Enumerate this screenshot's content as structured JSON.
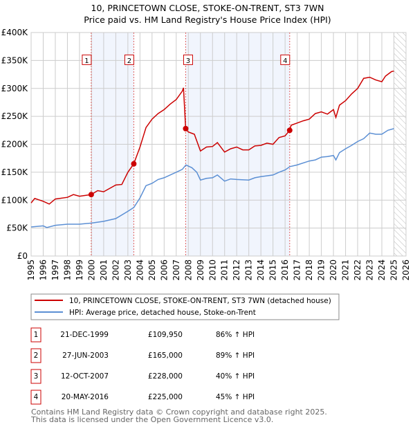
{
  "chart_data": {
    "type": "line",
    "title": "10, PRINCETOWN CLOSE, STOKE-ON-TRENT, ST3 7WN",
    "subtitle": "Price paid vs. HM Land Registry's House Price Index (HPI)",
    "xlim": [
      1995,
      2026
    ],
    "ylim": [
      0,
      400000
    ],
    "x_ticks": [
      "1995",
      "1996",
      "1997",
      "1998",
      "1999",
      "2000",
      "2001",
      "2002",
      "2003",
      "2004",
      "2005",
      "2006",
      "2007",
      "2008",
      "2009",
      "2010",
      "2011",
      "2012",
      "2013",
      "2014",
      "2015",
      "2016",
      "2017",
      "2018",
      "2019",
      "2020",
      "2021",
      "2022",
      "2023",
      "2024",
      "2025",
      "2026"
    ],
    "y_ticks": [
      {
        "v": 0,
        "label": "£0"
      },
      {
        "v": 50000,
        "label": "£50K"
      },
      {
        "v": 100000,
        "label": "£100K"
      },
      {
        "v": 150000,
        "label": "£150K"
      },
      {
        "v": 200000,
        "label": "£200K"
      },
      {
        "v": 250000,
        "label": "£250K"
      },
      {
        "v": 300000,
        "label": "£300K"
      },
      {
        "v": 350000,
        "label": "£350K"
      },
      {
        "v": 400000,
        "label": "£400K"
      }
    ],
    "grid": true,
    "shaded_periods": [
      [
        1999.97,
        2003.49
      ],
      [
        2007.78,
        2016.38
      ]
    ],
    "forecast_hatch_from": 2025.0,
    "series": [
      {
        "name": "10, PRINCETOWN CLOSE, STOKE-ON-TRENT, ST3 7WN (detached house)",
        "color": "#cc0000",
        "x": [
          1995,
          1995.3,
          1996,
          1996.5,
          1997,
          1998,
          1998.5,
          1999,
          1999.97,
          2000.5,
          2001,
          2002,
          2002.5,
          2003,
          2003.49,
          2004,
          2004.5,
          2005,
          2005.5,
          2006,
          2006.5,
          2007,
          2007.5,
          2007.6,
          2007.78,
          2008,
          2008.5,
          2009,
          2009.5,
          2010,
          2010.4,
          2011,
          2011.5,
          2012,
          2012.5,
          2013,
          2013.5,
          2014,
          2014.5,
          2015,
          2015.5,
          2016,
          2016.38,
          2016.5,
          2017,
          2017.5,
          2018,
          2018.5,
          2019,
          2019.5,
          2020,
          2020.2,
          2020.5,
          2021,
          2021.5,
          2022,
          2022.5,
          2023,
          2023.5,
          2024,
          2024.3,
          2024.8,
          2025
        ],
        "y": [
          95000,
          103000,
          98000,
          93000,
          102000,
          105000,
          110000,
          107000,
          109950,
          117000,
          115000,
          127000,
          128000,
          150000,
          165000,
          195000,
          230000,
          245000,
          255000,
          262000,
          272000,
          280000,
          295000,
          301000,
          228000,
          222000,
          218000,
          188000,
          195000,
          196000,
          203000,
          186000,
          192000,
          195000,
          190000,
          190000,
          197000,
          198000,
          202000,
          200000,
          212000,
          215000,
          225000,
          234000,
          238000,
          242000,
          245000,
          255000,
          258000,
          254000,
          262000,
          248000,
          270000,
          278000,
          290000,
          300000,
          318000,
          320000,
          315000,
          312000,
          322000,
          330000,
          331000
        ]
      },
      {
        "name": "HPI: Average price, detached house, Stoke-on-Trent",
        "color": "#5b8fd4",
        "x": [
          1995,
          1996,
          1996.3,
          1997,
          1998,
          1999,
          2000,
          2001,
          2002,
          2003,
          2003.5,
          2004,
          2004.5,
          2005,
          2005.5,
          2006,
          2007,
          2007.5,
          2007.8,
          2008.3,
          2008.7,
          2009,
          2009.5,
          2010,
          2010.4,
          2011,
          2011.5,
          2012,
          2013,
          2013.5,
          2014,
          2015,
          2015.5,
          2016,
          2016.4,
          2017,
          2018,
          2018.5,
          2019,
          2019.5,
          2020,
          2020.2,
          2020.5,
          2021,
          2021.5,
          2022,
          2022.5,
          2023,
          2023.5,
          2024,
          2024.5,
          2025
        ],
        "y": [
          52000,
          54000,
          51000,
          55000,
          57000,
          57000,
          59000,
          62000,
          67000,
          80000,
          87000,
          104000,
          126000,
          130000,
          137000,
          140000,
          150000,
          155000,
          163000,
          158000,
          150000,
          136000,
          139000,
          140000,
          145000,
          134000,
          138000,
          137000,
          136000,
          140000,
          142000,
          145000,
          150000,
          154000,
          160000,
          163000,
          170000,
          172000,
          177000,
          178000,
          180000,
          172000,
          185000,
          192000,
          198000,
          205000,
          210000,
          220000,
          218000,
          218000,
          225000,
          228000
        ]
      }
    ],
    "sales": [
      {
        "n": "1",
        "date": "21-DEC-1999",
        "price": "£109,950",
        "hpi": "86% ↑ HPI",
        "x": 1999.97,
        "y": 109950
      },
      {
        "n": "2",
        "date": "27-JUN-2003",
        "price": "£165,000",
        "hpi": "89% ↑ HPI",
        "x": 2003.49,
        "y": 165000
      },
      {
        "n": "3",
        "date": "12-OCT-2007",
        "price": "£228,000",
        "hpi": "40% ↑ HPI",
        "x": 2007.78,
        "y": 228000
      },
      {
        "n": "4",
        "date": "20-MAY-2016",
        "price": "£225,000",
        "hpi": "45% ↑ HPI",
        "x": 2016.38,
        "y": 225000
      }
    ],
    "legend_placement": "below"
  },
  "footer": [
    "Contains HM Land Registry data © Crown copyright and database right 2025.",
    "This data is licensed under the Open Government Licence v3.0."
  ]
}
